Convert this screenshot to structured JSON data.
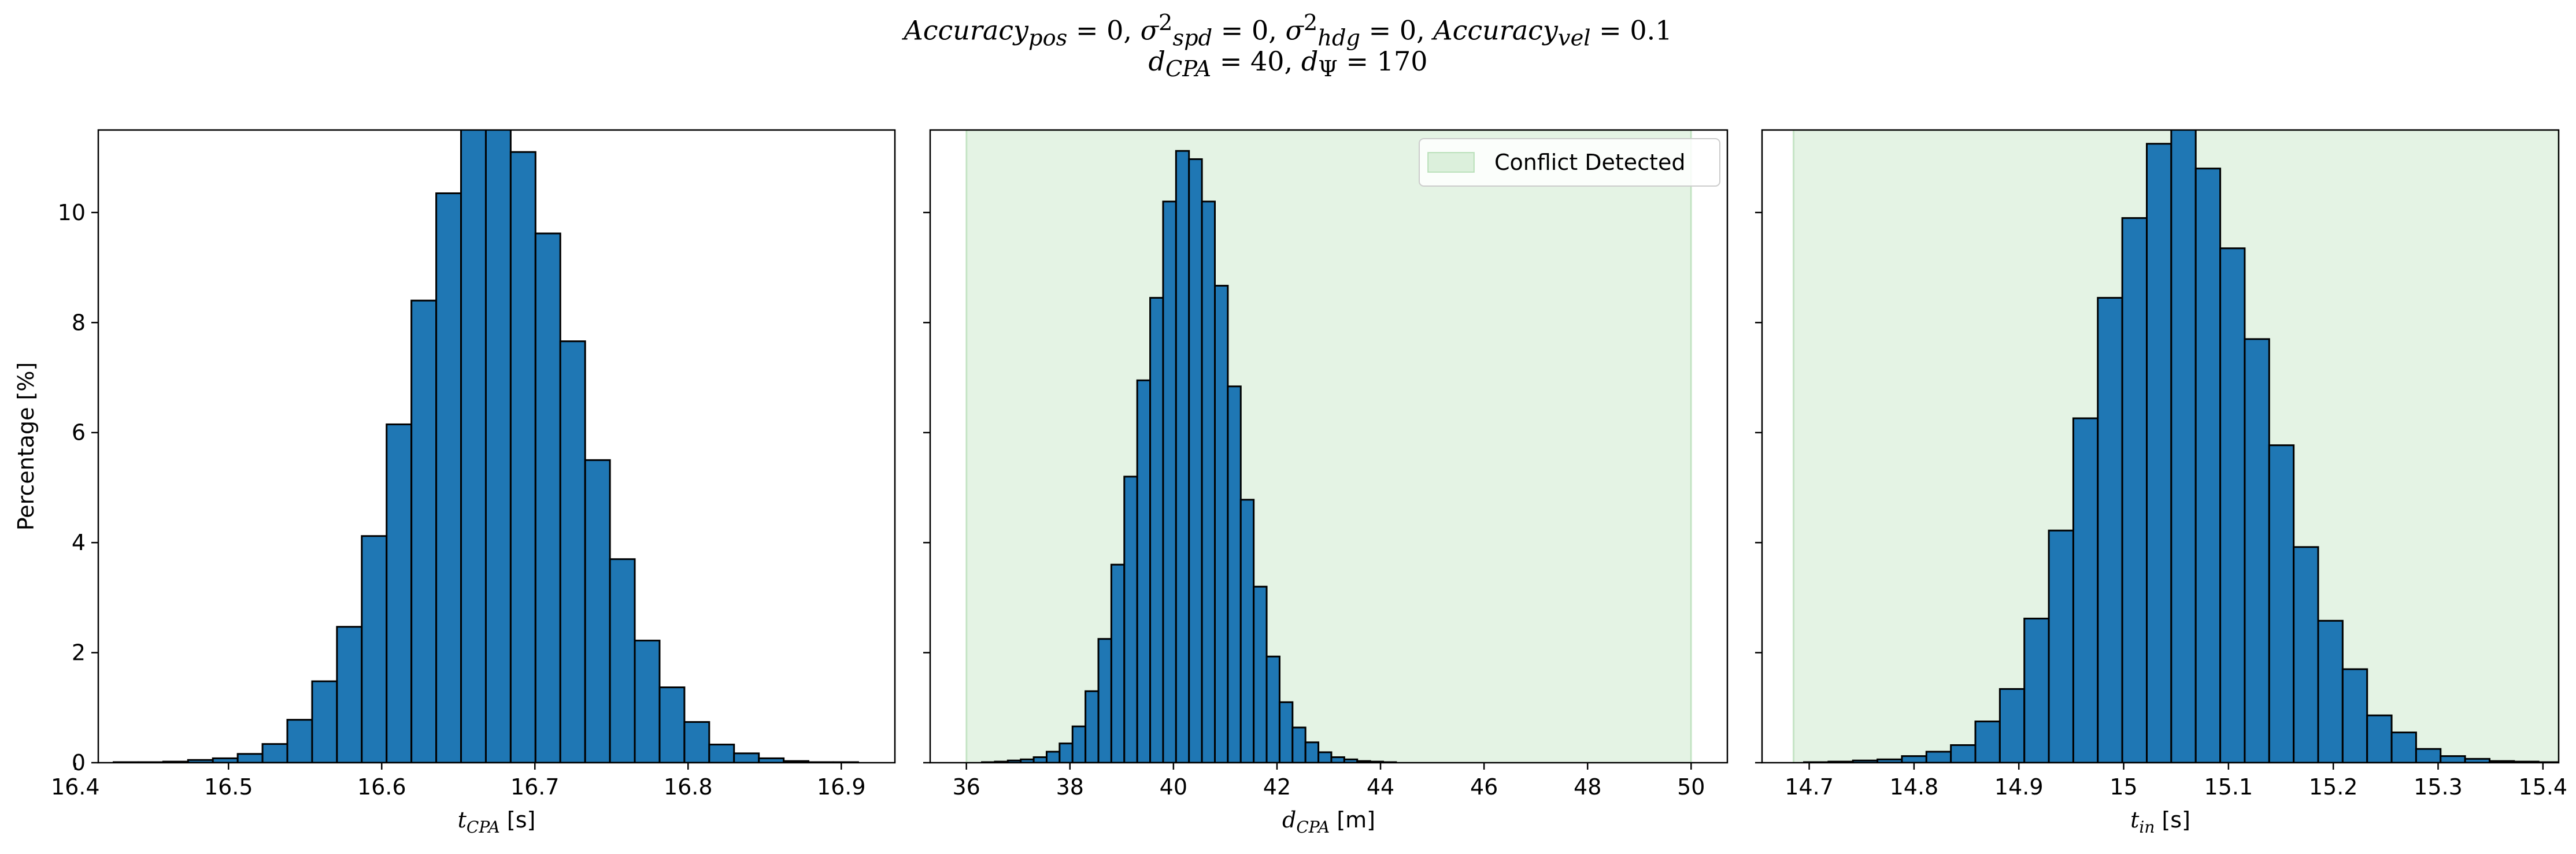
{
  "colors": {
    "bar_fill": "#1f77b4",
    "bar_edge": "#000000",
    "shade": "#2ca02c",
    "axis": "#000000",
    "background": "#ffffff"
  },
  "suptitle": {
    "line1": {
      "a_base": "Accuracy",
      "a_sub": "pos",
      "a_val": " = 0, ",
      "s1_base": "σ",
      "s1_sup": "2",
      "s1_sub": "spd",
      "s1_val": " = 0, ",
      "s2_base": "σ",
      "s2_sup": "2",
      "s2_sub": "hdg",
      "s2_val": " = 0, ",
      "v_base": "Accuracy",
      "v_sub": "vel",
      "v_val": " = 0.1"
    },
    "line2": {
      "d_base": "d",
      "d_sub": "CPA",
      "d_val": " = 40, ",
      "p_base": "d",
      "p_sub": "Ψ",
      "p_val": " = 170"
    }
  },
  "chart_data": [
    {
      "type": "bar",
      "subtype": "histogram",
      "ylabel": "Percentage [%]",
      "xlabel": {
        "base": "t",
        "sub": "CPA",
        "unit": " [s]"
      },
      "xlim": [
        16.415,
        16.935
      ],
      "ylim": [
        0,
        11.5
      ],
      "xticks": [
        16.4,
        16.5,
        16.6,
        16.7,
        16.8,
        16.9
      ],
      "yticks": [
        0,
        2,
        4,
        6,
        8,
        10
      ],
      "bin_start": 16.425,
      "bin_width": 0.0162,
      "values": [
        0.01,
        0.01,
        0.02,
        0.05,
        0.08,
        0.16,
        0.34,
        0.78,
        1.48,
        2.47,
        4.12,
        6.15,
        8.4,
        10.35,
        11.8,
        12.6,
        11.1,
        9.62,
        7.66,
        5.5,
        3.7,
        2.22,
        1.37,
        0.74,
        0.33,
        0.17,
        0.08,
        0.03,
        0.01,
        0.01
      ],
      "shaded_region": null,
      "legend": null
    },
    {
      "type": "bar",
      "subtype": "histogram",
      "ylabel": "",
      "xlabel": {
        "base": "d",
        "sub": "CPA",
        "unit": " [m]"
      },
      "xlim": [
        35.3,
        50.7
      ],
      "ylim": [
        0,
        11.5
      ],
      "xticks": [
        36,
        38,
        40,
        42,
        44,
        46,
        48,
        50
      ],
      "yticks": [
        0,
        2,
        4,
        6,
        8,
        10
      ],
      "bin_start": 36.3,
      "bin_width": 0.25,
      "values": [
        0.01,
        0.02,
        0.04,
        0.06,
        0.1,
        0.2,
        0.35,
        0.66,
        1.3,
        2.25,
        3.6,
        5.2,
        6.95,
        8.45,
        10.2,
        11.12,
        10.97,
        10.2,
        8.67,
        6.84,
        4.78,
        3.2,
        1.93,
        1.1,
        0.64,
        0.37,
        0.19,
        0.1,
        0.06,
        0.03,
        0.02,
        0.01
      ],
      "shaded_region": [
        36,
        50
      ],
      "legend": {
        "label": "Conflict Detected",
        "placement": "upper right"
      }
    },
    {
      "type": "bar",
      "subtype": "histogram",
      "ylabel": "",
      "xlabel": {
        "base": "t",
        "sub": "in",
        "unit": " [s]"
      },
      "xlim": [
        14.655,
        15.415
      ],
      "ylim": [
        0,
        11.5
      ],
      "xticks": [
        14.7,
        14.8,
        14.9,
        15.0,
        15.1,
        15.2,
        15.3,
        15.4
      ],
      "yticks": [
        0,
        2,
        4,
        6,
        8,
        10
      ],
      "bin_start": 14.695,
      "bin_width": 0.02336,
      "values": [
        0.01,
        0.02,
        0.04,
        0.06,
        0.12,
        0.2,
        0.32,
        0.75,
        1.34,
        2.62,
        4.22,
        6.26,
        8.45,
        9.9,
        11.25,
        12.1,
        10.8,
        9.35,
        7.7,
        5.77,
        3.92,
        2.58,
        1.7,
        0.86,
        0.55,
        0.25,
        0.12,
        0.07,
        0.03,
        0.02,
        0.01,
        0.01
      ],
      "shaded_region": [
        14.685,
        15.415
      ],
      "legend": null
    }
  ]
}
